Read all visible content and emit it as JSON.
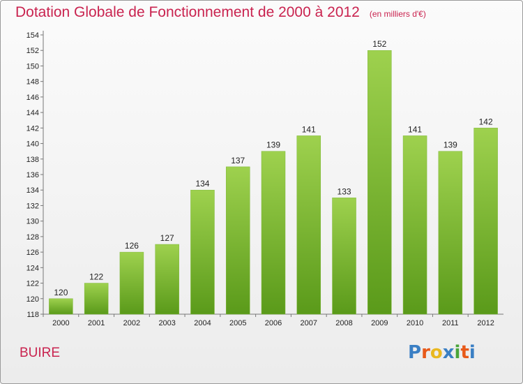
{
  "title": "Dotation Globale de Fonctionnement de 2000 à 2012",
  "subtitle": "(en milliers d'€)",
  "commune": "BUIRE",
  "logo": {
    "text": "Proxiti",
    "colors": [
      "#3a7fc4",
      "#e85a1a",
      "#e9b820",
      "#3a7fc4",
      "#4aa53a",
      "#e85a1a",
      "#3a7fc4"
    ]
  },
  "colors": {
    "bar_top": "#9ed14e",
    "bar_bottom": "#5a9a1a",
    "title": "#c9234f"
  },
  "chart_data": {
    "type": "bar",
    "categories": [
      "2000",
      "2001",
      "2002",
      "2003",
      "2004",
      "2005",
      "2006",
      "2007",
      "2008",
      "2009",
      "2010",
      "2011",
      "2012"
    ],
    "values": [
      120,
      122,
      126,
      127,
      134,
      137,
      139,
      141,
      133,
      152,
      141,
      139,
      142
    ],
    "data_labels": [
      "120",
      "122",
      "126",
      "127",
      "134",
      "137",
      "139",
      "141",
      "133",
      "152",
      "141",
      "139",
      "142"
    ],
    "ylim": [
      118,
      154
    ],
    "yticks": [
      "118",
      "120",
      "122",
      "124",
      "126",
      "128",
      "130",
      "132",
      "134",
      "136",
      "138",
      "140",
      "142",
      "144",
      "146",
      "148",
      "150",
      "152",
      "154"
    ],
    "grid": false
  }
}
